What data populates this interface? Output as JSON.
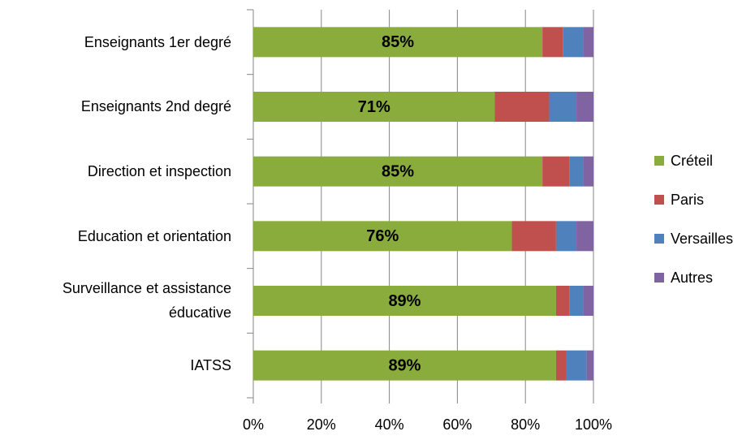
{
  "chart_data": {
    "type": "stacked-bar-horizontal",
    "categories": [
      "Enseignants 1er degré",
      "Enseignants 2nd degré",
      "Direction et inspection",
      "Education et orientation",
      "Surveillance et assistance éducative",
      "IATSS"
    ],
    "series": [
      {
        "name": "Créteil",
        "color": "#8aac3c",
        "values": [
          85,
          71,
          85,
          76,
          89,
          89
        ],
        "value_labels": [
          "85%",
          "71%",
          "85%",
          "76%",
          "89%",
          "89%"
        ]
      },
      {
        "name": "Paris",
        "color": "#c0504d",
        "values": [
          6,
          16,
          8,
          13,
          4,
          3
        ]
      },
      {
        "name": "Versailles",
        "color": "#4f81bd",
        "values": [
          6,
          8,
          4,
          6,
          4,
          6
        ]
      },
      {
        "name": "Autres",
        "color": "#8064a2",
        "values": [
          3,
          5,
          3,
          5,
          3,
          2
        ]
      }
    ],
    "xlim": [
      0,
      100
    ],
    "xticks": [
      {
        "value": 0,
        "label": "0%"
      },
      {
        "value": 20,
        "label": "20%"
      },
      {
        "value": 40,
        "label": "40%"
      },
      {
        "value": 60,
        "label": "60%"
      },
      {
        "value": 80,
        "label": "80%"
      },
      {
        "value": 100,
        "label": "100%"
      }
    ],
    "grid": true,
    "legend": "right"
  }
}
